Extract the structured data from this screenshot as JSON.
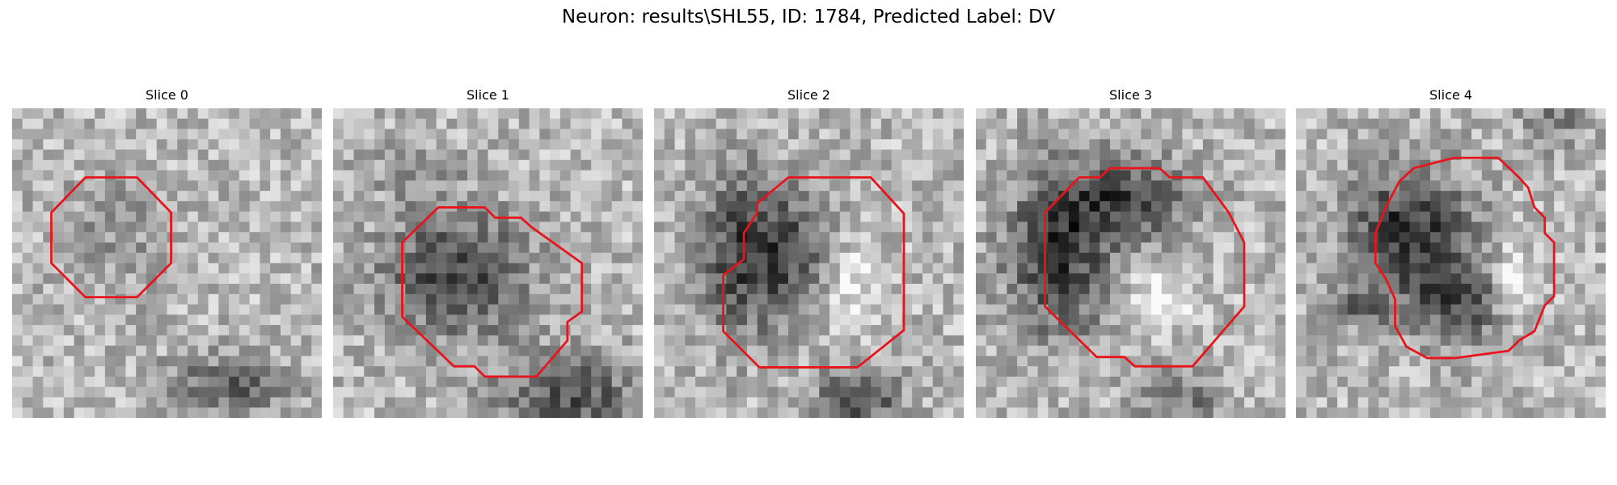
{
  "header": {
    "title": "Neuron: results\\SHL55, ID: 1784, Predicted Label: DV"
  },
  "panels": [
    {
      "title": "Slice 0"
    },
    {
      "title": "Slice 1"
    },
    {
      "title": "Slice 2"
    },
    {
      "title": "Slice 3"
    },
    {
      "title": "Slice 4"
    }
  ]
}
